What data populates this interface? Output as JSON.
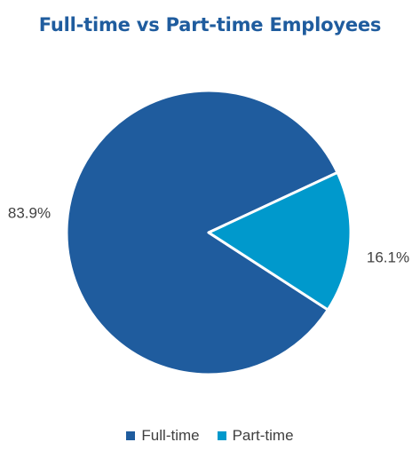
{
  "chart_data": {
    "type": "pie",
    "title": "Full-time vs Part-time Employees",
    "categories": [
      "Full-time",
      "Part-time"
    ],
    "values": [
      83.9,
      16.1
    ],
    "value_labels": [
      "83.9%",
      "16.1%"
    ],
    "colors": [
      "#1f5c9e",
      "#0099cc"
    ],
    "legend_position": "bottom"
  },
  "legend": {
    "items": [
      {
        "label": "Full-time",
        "color": "#1f5c9e"
      },
      {
        "label": "Part-time",
        "color": "#0099cc"
      }
    ]
  }
}
